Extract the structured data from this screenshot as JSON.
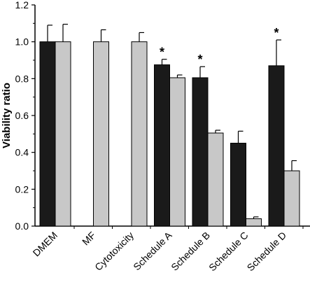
{
  "chart_data": {
    "type": "bar",
    "categories": [
      "DMEM",
      "MF",
      "Cytotoxicity",
      "Schedule A",
      "Schedule B",
      "Schedule C",
      "Schedule D"
    ],
    "series": [
      {
        "values": [
          1.0,
          null,
          null,
          0.875,
          0.805,
          0.45,
          0.87
        ],
        "errors": [
          0.09,
          null,
          null,
          0.03,
          0.06,
          0.065,
          0.14
        ],
        "color": "#1a1a1a"
      },
      {
        "values": [
          1.0,
          1.0,
          1.0,
          0.805,
          0.505,
          0.04,
          0.3
        ],
        "errors": [
          0.095,
          0.065,
          0.05,
          0.015,
          0.015,
          0.01,
          0.055
        ],
        "color": "#c8c8c8"
      }
    ],
    "significance": [
      "",
      "",
      "",
      "*",
      "*",
      "",
      "*"
    ],
    "ylabel": "Viability ratio",
    "xlabel": "",
    "title": "",
    "ylim": [
      0.0,
      1.2
    ],
    "yticks": [
      "0.0",
      "0.2",
      "0.4",
      "0.6",
      "0.8",
      "1.0",
      "1.2"
    ],
    "grid": false,
    "legend": "none"
  }
}
